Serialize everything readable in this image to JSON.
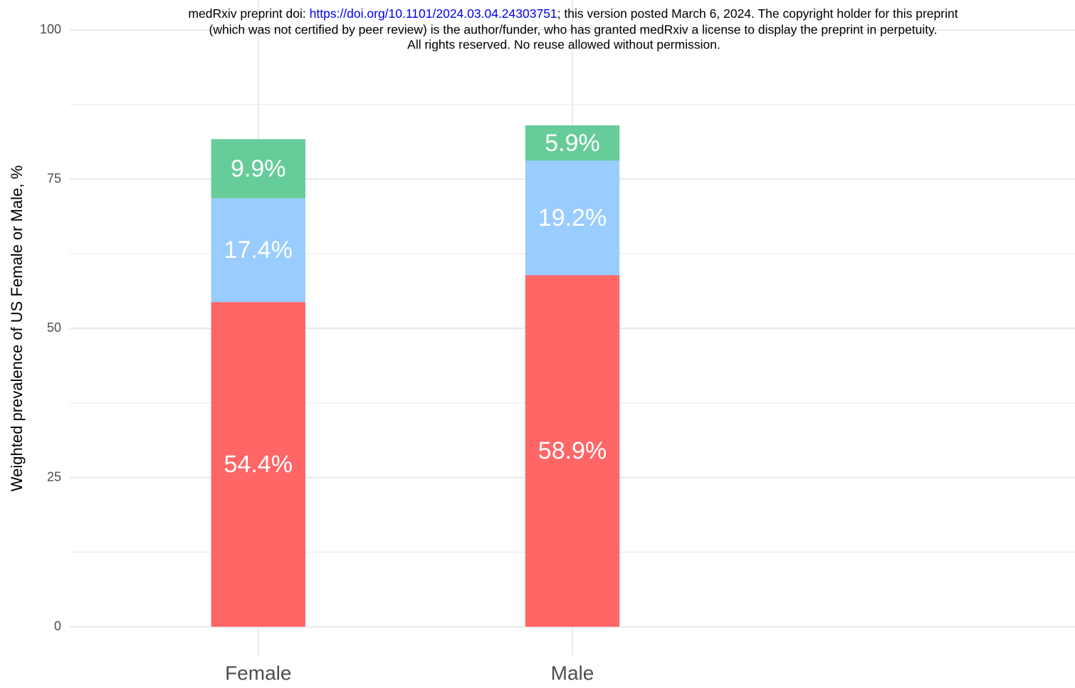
{
  "chart_data": {
    "type": "stacked_bar",
    "annotations": [
      "medRxiv preprint doi: ",
      "https://doi.org/10.1101/2024.03.04.24303751",
      "; this version posted March 6, 2024. The copyright holder for this preprint",
      "(which was not certified by peer review) is the author/funder, who has granted medRxiv a license to display the preprint in perpetuity.",
      "All rights reserved. No reuse allowed without permission."
    ],
    "y_label": "Weighted prevalence of US Female or Male, %",
    "categories": [
      "Female",
      "Male"
    ],
    "series": [
      {
        "color": "#ff6666",
        "values": [
          54.4,
          58.9
        ],
        "value_labels": [
          "54.4%",
          "58.9%"
        ]
      },
      {
        "color": "#99ccff",
        "values": [
          17.4,
          19.2
        ],
        "value_labels": [
          "17.4%",
          "19.2%"
        ]
      },
      {
        "color": "#66cc99",
        "values": [
          9.9,
          5.9
        ],
        "value_labels": [
          "9.9%",
          "5.9%"
        ]
      }
    ],
    "ylim": [
      0,
      100
    ],
    "yticks": [
      0,
      25,
      50,
      75,
      100
    ],
    "grid": true
  }
}
